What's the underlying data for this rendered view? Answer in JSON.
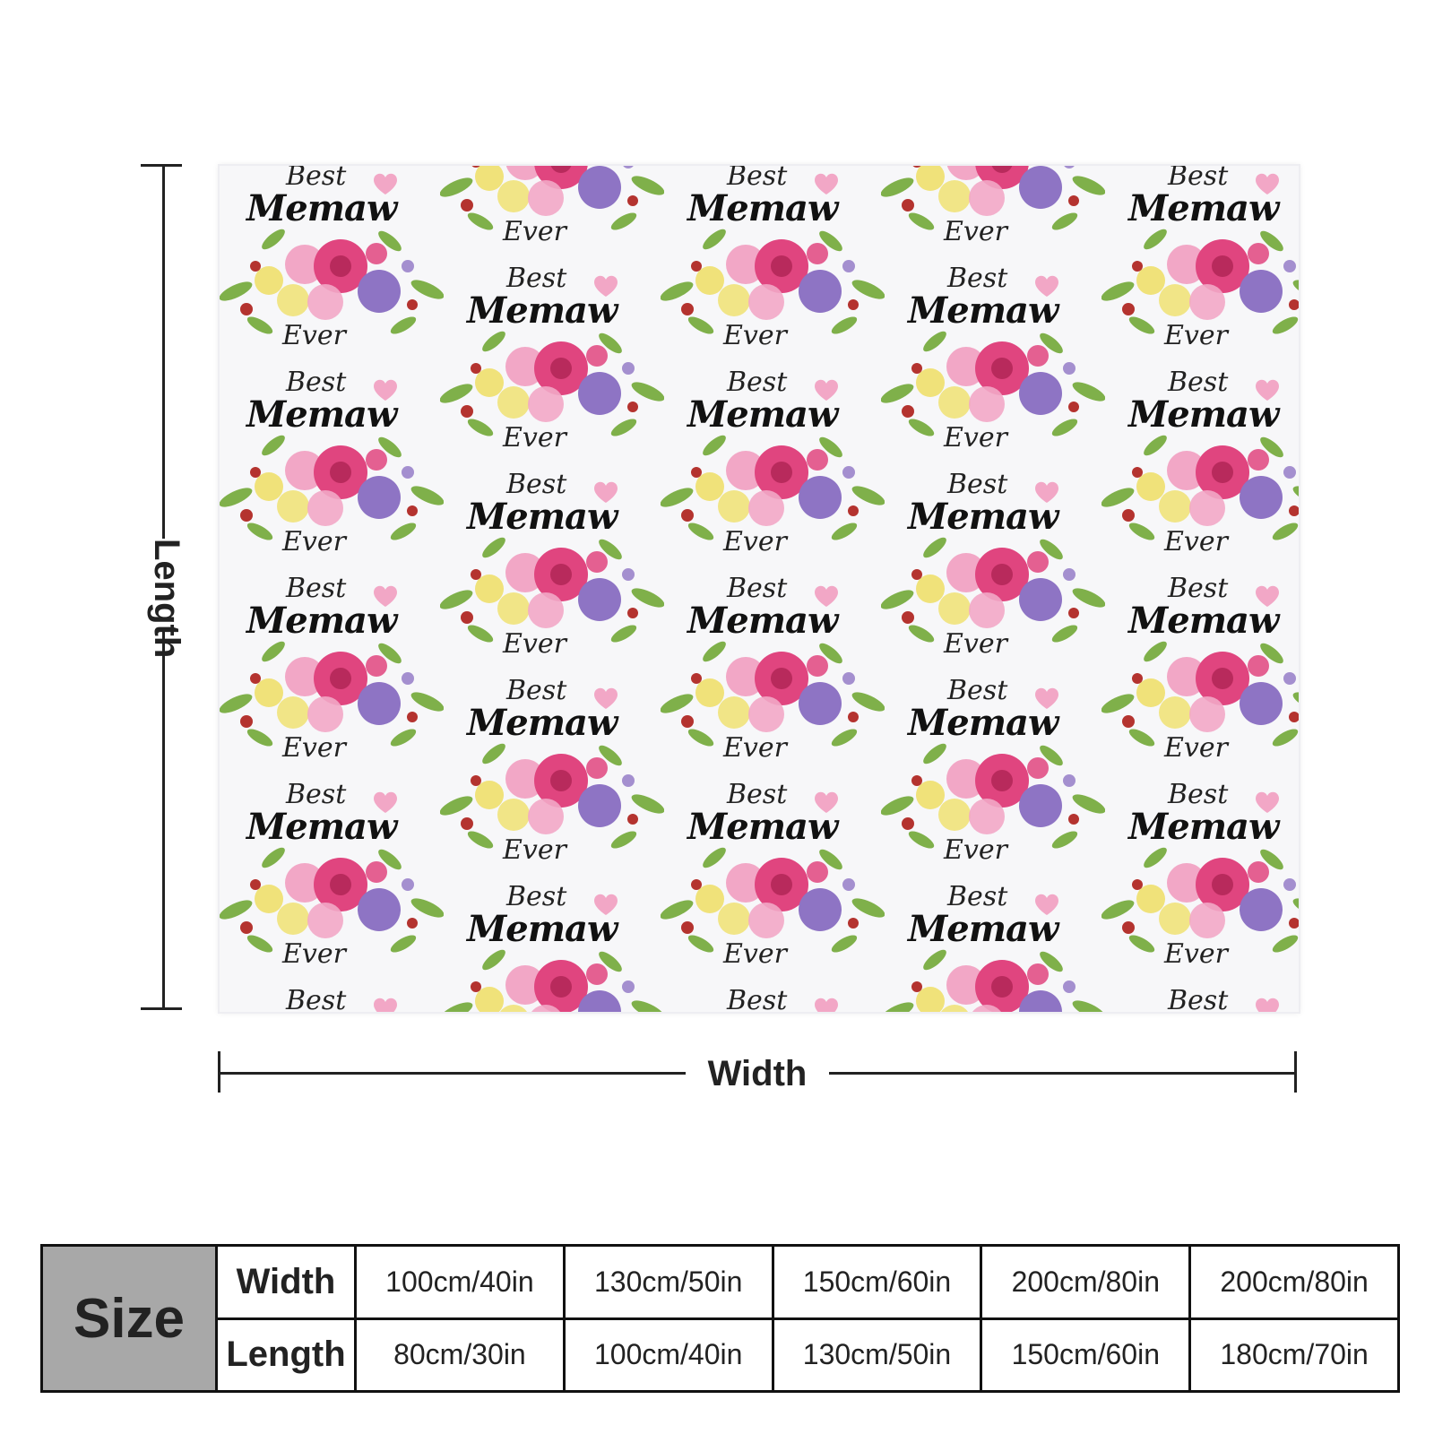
{
  "blanket": {
    "motif": {
      "top_word": "Best",
      "main_word": "Memaw",
      "bottom_word": "Ever"
    },
    "colors": {
      "rose": "#e0457f",
      "light_pink": "#f2a7c6",
      "yellow": "#f0e27a",
      "purple": "#8e74c4",
      "leaf": "#7fb04a",
      "red_berry": "#b4332f"
    }
  },
  "dimensions": {
    "length_label": "Length",
    "width_label": "Width"
  },
  "size_table": {
    "header": "Size",
    "rows": [
      {
        "label": "Width",
        "values": [
          "100cm/40in",
          "130cm/50in",
          "150cm/60in",
          "200cm/80in",
          "200cm/80in"
        ]
      },
      {
        "label": "Length",
        "values": [
          "80cm/30in",
          "100cm/40in",
          "130cm/50in",
          "150cm/60in",
          "180cm/70in"
        ]
      }
    ]
  }
}
